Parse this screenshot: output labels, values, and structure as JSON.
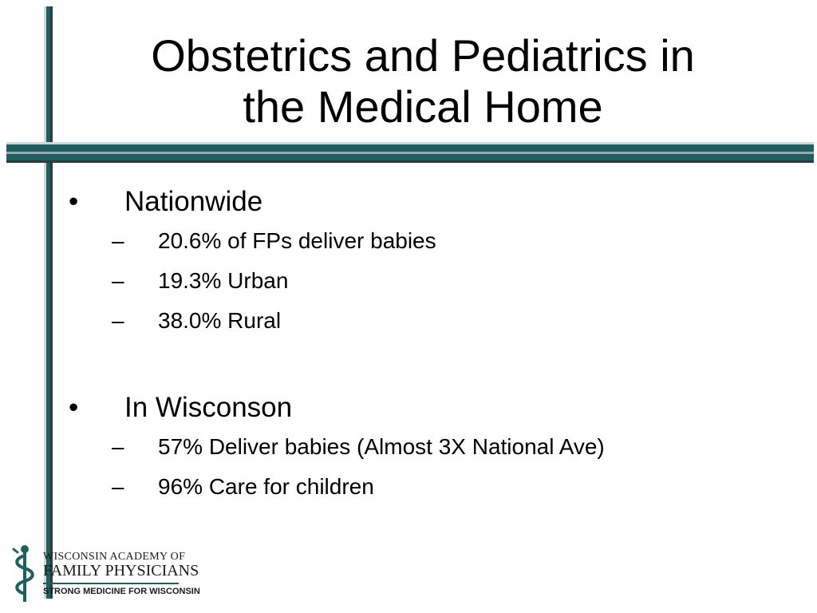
{
  "slide": {
    "title_lines": [
      "Obstetrics and Pediatrics in",
      "the Medical Home"
    ],
    "bullets": [
      {
        "marker": "•",
        "text": "Nationwide",
        "subitems": [
          {
            "marker": "–",
            "text": "20.6% of FPs deliver babies"
          },
          {
            "marker": "–",
            "text": "19.3% Urban"
          },
          {
            "marker": "–",
            "text": "38.0% Rural"
          }
        ]
      },
      {
        "marker": "•",
        "text": "In Wisconson",
        "subitems": [
          {
            "marker": "–",
            "text": "57% Deliver babies (Almost 3X National Ave)"
          },
          {
            "marker": "–",
            "text": "96% Care for children"
          }
        ]
      }
    ]
  },
  "logo": {
    "line1": "WISCONSIN ACADEMY OF",
    "line2": "FAMILY PHYSICIANS",
    "line3": "STRONG MEDICINE FOR WISCONSIN",
    "icon": "caduceus-icon"
  },
  "colors": {
    "accent": "#1f5f5f",
    "accent_dark": "#2c3c3c",
    "accent_light": "#cfd8d8",
    "text": "#000000",
    "background": "#ffffff"
  }
}
